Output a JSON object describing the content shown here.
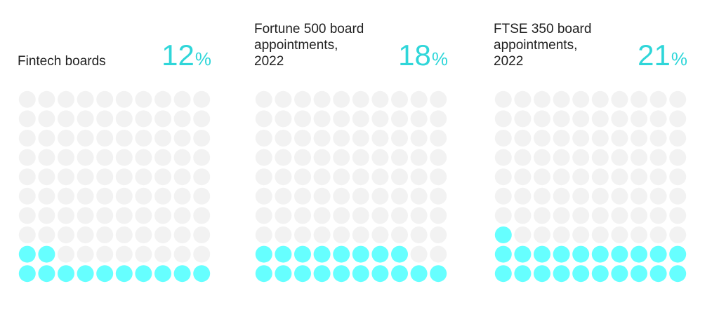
{
  "chart_data": [
    {
      "type": "waffle",
      "label": "Fintech boards",
      "value": 12,
      "unit": "%",
      "grid": [
        10,
        10
      ],
      "fill_color": "#66ffff",
      "empty_color": "#f2f2f2"
    },
    {
      "type": "waffle",
      "label": "Fortune 500 board\nappointments,\n2022",
      "value": 18,
      "unit": "%",
      "grid": [
        10,
        10
      ],
      "fill_color": "#66ffff",
      "empty_color": "#f2f2f2"
    },
    {
      "type": "waffle",
      "label": "FTSE 350 board\nappointments,\n2022",
      "value": 21,
      "unit": "%",
      "grid": [
        10,
        10
      ],
      "fill_color": "#66ffff",
      "empty_color": "#f2f2f2"
    }
  ],
  "colors": {
    "accent_text": "#2fd6d9",
    "label_text": "#1f1f1f"
  }
}
